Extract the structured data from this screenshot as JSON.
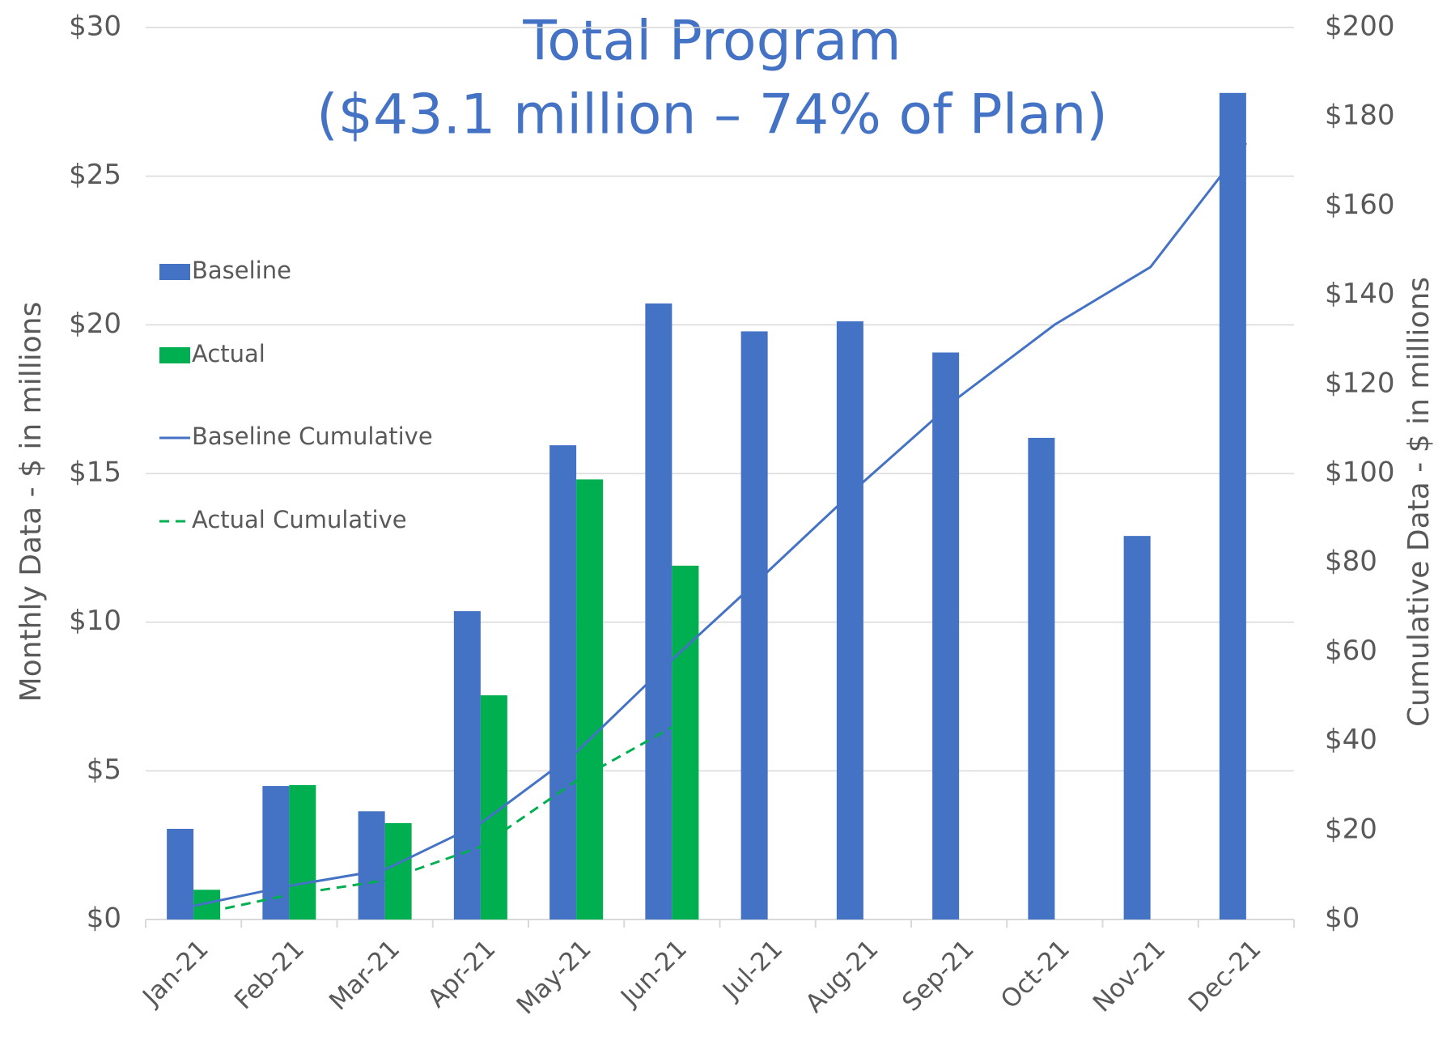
{
  "chart_data": {
    "type": "combo",
    "title": [
      "Total Program",
      "($43.1 million – 74% of Plan)"
    ],
    "ylabel": "Monthly Data - $ in millions",
    "y2label": "Cumulative Data - $ in millions",
    "categories": [
      "Jan-21",
      "Feb-21",
      "Mar-21",
      "Apr-21",
      "May-21",
      "Jun-21",
      "Jul-21",
      "Aug-21",
      "Sep-21",
      "Oct-21",
      "Nov-21",
      "Dec-21"
    ],
    "series": [
      {
        "name": "Baseline",
        "kind": "bar",
        "color": "#4472c4",
        "values": [
          3.05,
          4.49,
          3.64,
          10.37,
          15.95,
          20.72,
          19.78,
          20.12,
          19.07,
          16.2,
          12.9,
          27.8
        ]
      },
      {
        "name": "Actual",
        "kind": "bar",
        "color": "#00b050",
        "values": [
          1.0,
          4.52,
          3.24,
          7.54,
          14.8,
          11.9,
          null,
          null,
          null,
          null,
          null,
          null
        ]
      },
      {
        "name": "Baseline Cumulative",
        "kind": "line",
        "axis": "y2",
        "color": "#4472c4",
        "dashed": false,
        "values": [
          3.05,
          7.54,
          11.18,
          21.55,
          37.5,
          58.22,
          78.0,
          98.12,
          117.19,
          133.39,
          146.29,
          174.09
        ]
      },
      {
        "name": "Actual Cumulative",
        "kind": "line",
        "axis": "y2",
        "color": "#00b050",
        "dashed": true,
        "values": [
          1.0,
          5.52,
          8.76,
          16.3,
          31.1,
          43.1,
          null,
          null,
          null,
          null,
          null,
          null
        ]
      }
    ],
    "ylim": [
      0,
      30
    ],
    "yticks": [
      {
        "value": 0,
        "label": "$0"
      },
      {
        "value": 5,
        "label": "$5"
      },
      {
        "value": 10,
        "label": "$10"
      },
      {
        "value": 15,
        "label": "$15"
      },
      {
        "value": 20,
        "label": "$20"
      },
      {
        "value": 25,
        "label": "$25"
      },
      {
        "value": 30,
        "label": "$30"
      }
    ],
    "y2lim": [
      0,
      200
    ],
    "y2ticks": [
      {
        "value": 0,
        "label": "$0"
      },
      {
        "value": 20,
        "label": "$20"
      },
      {
        "value": 40,
        "label": "$40"
      },
      {
        "value": 60,
        "label": "$60"
      },
      {
        "value": 80,
        "label": "$80"
      },
      {
        "value": 100,
        "label": "$100"
      },
      {
        "value": 120,
        "label": "$120"
      },
      {
        "value": 140,
        "label": "$140"
      },
      {
        "value": 160,
        "label": "$160"
      },
      {
        "value": 180,
        "label": "$180"
      },
      {
        "value": 200,
        "label": "$200"
      }
    ],
    "grid": true,
    "legend": "left"
  }
}
